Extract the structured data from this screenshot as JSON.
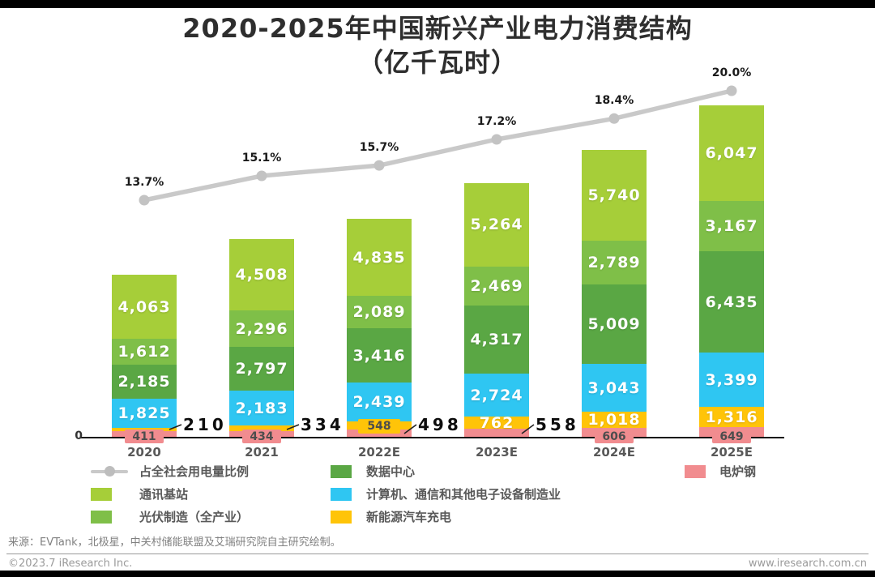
{
  "title": {
    "line1": "2020-2025年中国新兴产业电力消费结构",
    "line2": "（亿千瓦时）"
  },
  "chart_data": {
    "type": "bar",
    "stacked": true,
    "unit": "亿千瓦时",
    "grid": false,
    "legend_position": "bottom",
    "y_axis_zero_label": "0",
    "categories": [
      "2020",
      "2021",
      "2022E",
      "2023E",
      "2024E",
      "2025E"
    ],
    "series": [
      {
        "name": "通讯基站",
        "color": "#A6CE39",
        "values": [
          4063,
          4508,
          4835,
          5264,
          5740,
          6047
        ]
      },
      {
        "name": "光伏制造（全产业）",
        "color": "#7FBF48",
        "values": [
          1612,
          2296,
          2089,
          2469,
          2789,
          3167
        ]
      },
      {
        "name": "数据中心",
        "color": "#5AA744",
        "values": [
          2185,
          2797,
          3416,
          4317,
          5009,
          6435
        ]
      },
      {
        "name": "计算机、通信和其他电子设备制造业",
        "color": "#2FC6F2",
        "values": [
          1825,
          2183,
          2439,
          2724,
          3043,
          3399
        ]
      },
      {
        "name": "新能源汽车充电",
        "color": "#FFC408",
        "values": [
          210,
          334,
          548,
          762,
          1018,
          1316
        ],
        "label_modes": [
          "callout",
          "callout",
          "box",
          "inside",
          "inside",
          "inside"
        ]
      },
      {
        "name": "电炉钢",
        "color": "#F18C8F",
        "values": [
          411,
          434,
          498,
          558,
          606,
          649
        ],
        "label_modes": [
          "box",
          "box",
          "callout",
          "callout",
          "box",
          "box"
        ]
      }
    ],
    "line_series": {
      "name": "占全社会用电量比例",
      "color": "#C9C9C9",
      "values_pct": [
        13.7,
        15.1,
        15.7,
        17.2,
        18.4,
        20.0
      ],
      "labels": [
        "13.7%",
        "15.1%",
        "15.7%",
        "17.2%",
        "18.4%",
        "20.0%"
      ]
    }
  },
  "legend": {
    "items": [
      {
        "label": "占全社会用电量比例",
        "marker": "line",
        "color": "#C9C9C9"
      },
      {
        "label": "通讯基站",
        "marker": "square",
        "color": "#A6CE39"
      },
      {
        "label": "光伏制造（全产业）",
        "marker": "square",
        "color": "#7FBF48"
      },
      {
        "label": "数据中心",
        "marker": "square",
        "color": "#5AA744"
      },
      {
        "label": "计算机、通信和其他电子设备制造业",
        "marker": "square",
        "color": "#2FC6F2"
      },
      {
        "label": "新能源汽车充电",
        "marker": "square",
        "color": "#FFC408"
      },
      {
        "label": "电炉钢",
        "marker": "square",
        "color": "#F18C8F"
      }
    ]
  },
  "footer": {
    "source": "来源：EVTank，北极星，中关村储能联盟及艾瑞研究院自主研究绘制。",
    "copyright": "©2023.7 iResearch Inc.",
    "website": "www.iresearch.com.cn"
  }
}
